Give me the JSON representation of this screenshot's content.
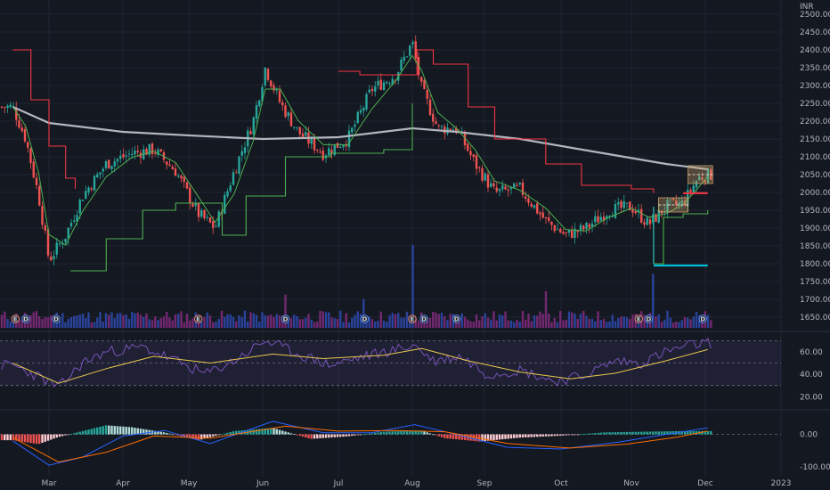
{
  "chart_data": [
    {
      "type": "candlestick",
      "currency": "INR",
      "ylim": [
        1620,
        2520
      ],
      "y_ticks": [
        "2500.00",
        "2450.00",
        "2400.00",
        "2350.00",
        "2300.00",
        "2250.00",
        "2200.00",
        "2150.00",
        "2100.00",
        "2050.00",
        "2000.00",
        "1950.00",
        "1900.00",
        "1850.00",
        "1800.00",
        "1750.00",
        "1700.00",
        "1650.00"
      ],
      "x_ticks": [
        "Mar",
        "Apr",
        "May",
        "Jun",
        "Jul",
        "Aug",
        "Sep",
        "Oct",
        "Nov",
        "Dec",
        "2023"
      ],
      "grid": true,
      "colors": {
        "up": "#26a69a",
        "down": "#ef5350",
        "sma200": "#b2b5be",
        "supertrend_down": "#f23645",
        "supertrend_up": "#4caf50",
        "ema": "#4caf50",
        "target": "#00bcd4"
      },
      "price_keypoints": [
        {
          "x": "Feb-15",
          "close": 2240
        },
        {
          "x": "Feb-20",
          "close": 2150
        },
        {
          "x": "Feb-25",
          "close": 1990
        },
        {
          "x": "Mar-01",
          "close": 1810
        },
        {
          "x": "Mar-08",
          "close": 1880
        },
        {
          "x": "Mar-15",
          "close": 1990
        },
        {
          "x": "Mar-25",
          "close": 2080
        },
        {
          "x": "Apr-05",
          "close": 2110
        },
        {
          "x": "Apr-15",
          "close": 2120
        },
        {
          "x": "Apr-25",
          "close": 2060
        },
        {
          "x": "May-05",
          "close": 1940
        },
        {
          "x": "May-12",
          "close": 1900
        },
        {
          "x": "May-20",
          "close": 2060
        },
        {
          "x": "May-28",
          "close": 2200
        },
        {
          "x": "Jun-02",
          "close": 2350
        },
        {
          "x": "Jun-08",
          "close": 2250
        },
        {
          "x": "Jun-15",
          "close": 2170
        },
        {
          "x": "Jun-25",
          "close": 2110
        },
        {
          "x": "Jul-05",
          "close": 2150
        },
        {
          "x": "Jul-15",
          "close": 2290
        },
        {
          "x": "Jul-25",
          "close": 2330
        },
        {
          "x": "Aug-01",
          "close": 2420
        },
        {
          "x": "Aug-05",
          "close": 2290
        },
        {
          "x": "Aug-12",
          "close": 2180
        },
        {
          "x": "Aug-20",
          "close": 2180
        },
        {
          "x": "Aug-28",
          "close": 2080
        },
        {
          "x": "Sep-05",
          "close": 2000
        },
        {
          "x": "Sep-15",
          "close": 2010
        },
        {
          "x": "Sep-25",
          "close": 1920
        },
        {
          "x": "Oct-03",
          "close": 1880
        },
        {
          "x": "Oct-12",
          "close": 1900
        },
        {
          "x": "Oct-22",
          "close": 1950
        },
        {
          "x": "Nov-01",
          "close": 1960
        },
        {
          "x": "Nov-08",
          "close": 1910
        },
        {
          "x": "Nov-15",
          "close": 1960
        },
        {
          "x": "Nov-22",
          "close": 1970
        },
        {
          "x": "Nov-28",
          "close": 2040
        },
        {
          "x": "Dec-02",
          "close": 2050
        }
      ],
      "sma200": [
        {
          "x": "Feb-15",
          "y": 2240
        },
        {
          "x": "Mar-01",
          "y": 2195
        },
        {
          "x": "Apr-01",
          "y": 2170
        },
        {
          "x": "May-01",
          "y": 2160
        },
        {
          "x": "Jun-01",
          "y": 2150
        },
        {
          "x": "Jul-01",
          "y": 2155
        },
        {
          "x": "Aug-01",
          "y": 2180
        },
        {
          "x": "Aug-20",
          "y": 2170
        },
        {
          "x": "Sep-15",
          "y": 2150
        },
        {
          "x": "Oct-15",
          "y": 2115
        },
        {
          "x": "Nov-15",
          "y": 2080
        },
        {
          "x": "Dec-02",
          "y": 2065
        }
      ],
      "supertrend_down": [
        {
          "x": "Feb-15",
          "y": 2400
        },
        {
          "x": "Feb-22",
          "y": 2260
        },
        {
          "x": "Mar-01",
          "y": 2130
        },
        {
          "x": "Mar-08",
          "y": 2040
        },
        {
          "x": "Mar-12",
          "y": 2010
        },
        {
          "x": "Jul-01",
          "y": 2340
        },
        {
          "x": "Jul-10",
          "y": 2330
        },
        {
          "x": "Aug-03",
          "y": 2400
        },
        {
          "x": "Aug-10",
          "y": 2360
        },
        {
          "x": "Aug-25",
          "y": 2240
        },
        {
          "x": "Sep-05",
          "y": 2150
        },
        {
          "x": "Sep-25",
          "y": 2080
        },
        {
          "x": "Oct-10",
          "y": 2020
        },
        {
          "x": "Nov-01",
          "y": 2010
        },
        {
          "x": "Nov-10",
          "y": 1998
        }
      ],
      "supertrend_up": [
        {
          "x": "Mar-10",
          "y": 1780
        },
        {
          "x": "Mar-25",
          "y": 1870
        },
        {
          "x": "Apr-10",
          "y": 1950
        },
        {
          "x": "Apr-25",
          "y": 1970
        },
        {
          "x": "May-08",
          "y": 1970
        },
        {
          "x": "May-15",
          "y": 1880
        },
        {
          "x": "May-25",
          "y": 1990
        },
        {
          "x": "Jun-10",
          "y": 2100
        },
        {
          "x": "Jun-20",
          "y": 2100
        },
        {
          "x": "Jun-28",
          "y": 2110
        },
        {
          "x": "Jul-20",
          "y": 2120
        },
        {
          "x": "Aug-01",
          "y": 2250
        },
        {
          "x": "Nov-10",
          "y": 1800
        },
        {
          "x": "Nov-14",
          "y": 1930
        },
        {
          "x": "Nov-22",
          "y": 1940
        },
        {
          "x": "Dec-02",
          "y": 1950
        }
      ],
      "target_level": 1795,
      "annotation_boxes": [
        {
          "from": "Nov-12",
          "to": "Nov-24",
          "top": 1985,
          "bottom": 1945
        },
        {
          "from": "Nov-24",
          "to": "Dec-04",
          "top": 2075,
          "bottom": 2025
        }
      ],
      "events": [
        {
          "label": "E",
          "x": "Feb-16"
        },
        {
          "label": "D",
          "x": "Feb-20"
        },
        {
          "label": "D",
          "x": "Mar-04"
        },
        {
          "label": "E",
          "x": "May-05"
        },
        {
          "label": "D",
          "x": "Jun-10"
        },
        {
          "label": "D",
          "x": "Jul-12"
        },
        {
          "label": "E",
          "x": "Aug-01"
        },
        {
          "label": "D",
          "x": "Aug-06"
        },
        {
          "label": "D",
          "x": "Aug-20"
        },
        {
          "label": "E",
          "x": "Nov-04"
        },
        {
          "label": "D",
          "x": "Nov-08"
        },
        {
          "label": "D",
          "x": "Nov-30"
        }
      ]
    },
    {
      "type": "bar",
      "name": "Volume",
      "highlights": [
        {
          "x": "Aug-01",
          "value": 0.95
        },
        {
          "x": "Jun-10",
          "value": 0.38
        },
        {
          "x": "Jul-12",
          "value": 0.33
        },
        {
          "x": "Sep-25",
          "value": 0.42
        },
        {
          "x": "Nov-10",
          "value": 0.62
        }
      ]
    },
    {
      "type": "line",
      "name": "RSI",
      "ylim": [
        10,
        75
      ],
      "y_ticks": [
        "60.00",
        "40.00",
        "20.00"
      ],
      "bands": {
        "upper": 70,
        "middle": 50,
        "lower": 30
      },
      "rsi": [
        {
          "x": "Feb-15",
          "y": 48
        },
        {
          "x": "Feb-25",
          "y": 38
        },
        {
          "x": "Mar-05",
          "y": 28
        },
        {
          "x": "Mar-15",
          "y": 50
        },
        {
          "x": "Mar-25",
          "y": 60
        },
        {
          "x": "Apr-10",
          "y": 64
        },
        {
          "x": "Apr-25",
          "y": 52
        },
        {
          "x": "May-08",
          "y": 40
        },
        {
          "x": "May-20",
          "y": 52
        },
        {
          "x": "Jun-02",
          "y": 70
        },
        {
          "x": "Jun-15",
          "y": 58
        },
        {
          "x": "Jun-28",
          "y": 48
        },
        {
          "x": "Jul-10",
          "y": 55
        },
        {
          "x": "Jul-25",
          "y": 62
        },
        {
          "x": "Aug-02",
          "y": 66
        },
        {
          "x": "Aug-10",
          "y": 52
        },
        {
          "x": "Aug-22",
          "y": 56
        },
        {
          "x": "Sep-02",
          "y": 40
        },
        {
          "x": "Sep-15",
          "y": 44
        },
        {
          "x": "Sep-28",
          "y": 34
        },
        {
          "x": "Oct-10",
          "y": 38
        },
        {
          "x": "Oct-25",
          "y": 52
        },
        {
          "x": "Nov-05",
          "y": 50
        },
        {
          "x": "Nov-15",
          "y": 60
        },
        {
          "x": "Nov-25",
          "y": 66
        },
        {
          "x": "Dec-02",
          "y": 68
        }
      ],
      "rsi_ma": [
        {
          "x": "Feb-15",
          "y": 50
        },
        {
          "x": "Mar-05",
          "y": 32
        },
        {
          "x": "Mar-25",
          "y": 45
        },
        {
          "x": "Apr-15",
          "y": 56
        },
        {
          "x": "May-10",
          "y": 50
        },
        {
          "x": "Jun-05",
          "y": 58
        },
        {
          "x": "Jun-25",
          "y": 54
        },
        {
          "x": "Jul-20",
          "y": 57
        },
        {
          "x": "Aug-05",
          "y": 63
        },
        {
          "x": "Aug-25",
          "y": 52
        },
        {
          "x": "Sep-15",
          "y": 42
        },
        {
          "x": "Oct-05",
          "y": 36
        },
        {
          "x": "Oct-25",
          "y": 41
        },
        {
          "x": "Nov-15",
          "y": 52
        },
        {
          "x": "Dec-02",
          "y": 62
        }
      ]
    },
    {
      "type": "bar",
      "name": "MACD",
      "ylim": [
        -130,
        70
      ],
      "y_ticks": [
        "0.00",
        "-100.00"
      ],
      "macd": [
        {
          "x": "Feb-15",
          "y": -20
        },
        {
          "x": "Mar-01",
          "y": -95
        },
        {
          "x": "Mar-15",
          "y": -70
        },
        {
          "x": "Apr-01",
          "y": -5
        },
        {
          "x": "Apr-20",
          "y": 12
        },
        {
          "x": "May-10",
          "y": -28
        },
        {
          "x": "Jun-05",
          "y": 40
        },
        {
          "x": "Jun-25",
          "y": 5
        },
        {
          "x": "Jul-15",
          "y": 5
        },
        {
          "x": "Aug-02",
          "y": 30
        },
        {
          "x": "Aug-20",
          "y": 0
        },
        {
          "x": "Sep-10",
          "y": -40
        },
        {
          "x": "Oct-01",
          "y": -45
        },
        {
          "x": "Oct-25",
          "y": -25
        },
        {
          "x": "Nov-15",
          "y": 0
        },
        {
          "x": "Dec-02",
          "y": 20
        }
      ],
      "signal": [
        {
          "x": "Feb-15",
          "y": -10
        },
        {
          "x": "Mar-05",
          "y": -85
        },
        {
          "x": "Mar-25",
          "y": -55
        },
        {
          "x": "Apr-15",
          "y": -5
        },
        {
          "x": "May-10",
          "y": -12
        },
        {
          "x": "Jun-10",
          "y": 25
        },
        {
          "x": "Jul-01",
          "y": 10
        },
        {
          "x": "Jul-25",
          "y": 12
        },
        {
          "x": "Aug-15",
          "y": 8
        },
        {
          "x": "Sep-10",
          "y": -28
        },
        {
          "x": "Oct-05",
          "y": -42
        },
        {
          "x": "Oct-30",
          "y": -30
        },
        {
          "x": "Nov-20",
          "y": -8
        },
        {
          "x": "Dec-02",
          "y": 10
        }
      ],
      "histogram": [
        {
          "x": "Feb-15",
          "y": -18
        },
        {
          "x": "Feb-25",
          "y": -30
        },
        {
          "x": "Mar-05",
          "y": -8
        },
        {
          "x": "Mar-15",
          "y": 10
        },
        {
          "x": "Mar-25",
          "y": 28
        },
        {
          "x": "Apr-05",
          "y": 22
        },
        {
          "x": "Apr-20",
          "y": 6
        },
        {
          "x": "May-05",
          "y": -18
        },
        {
          "x": "May-20",
          "y": 10
        },
        {
          "x": "Jun-05",
          "y": 20
        },
        {
          "x": "Jun-20",
          "y": -14
        },
        {
          "x": "Jul-05",
          "y": -6
        },
        {
          "x": "Jul-20",
          "y": 8
        },
        {
          "x": "Aug-05",
          "y": 12
        },
        {
          "x": "Aug-15",
          "y": -12
        },
        {
          "x": "Aug-30",
          "y": -22
        },
        {
          "x": "Sep-15",
          "y": -10
        },
        {
          "x": "Oct-01",
          "y": -4
        },
        {
          "x": "Oct-20",
          "y": 6
        },
        {
          "x": "Nov-05",
          "y": 8
        },
        {
          "x": "Nov-20",
          "y": 10
        },
        {
          "x": "Dec-02",
          "y": 10
        }
      ]
    }
  ]
}
